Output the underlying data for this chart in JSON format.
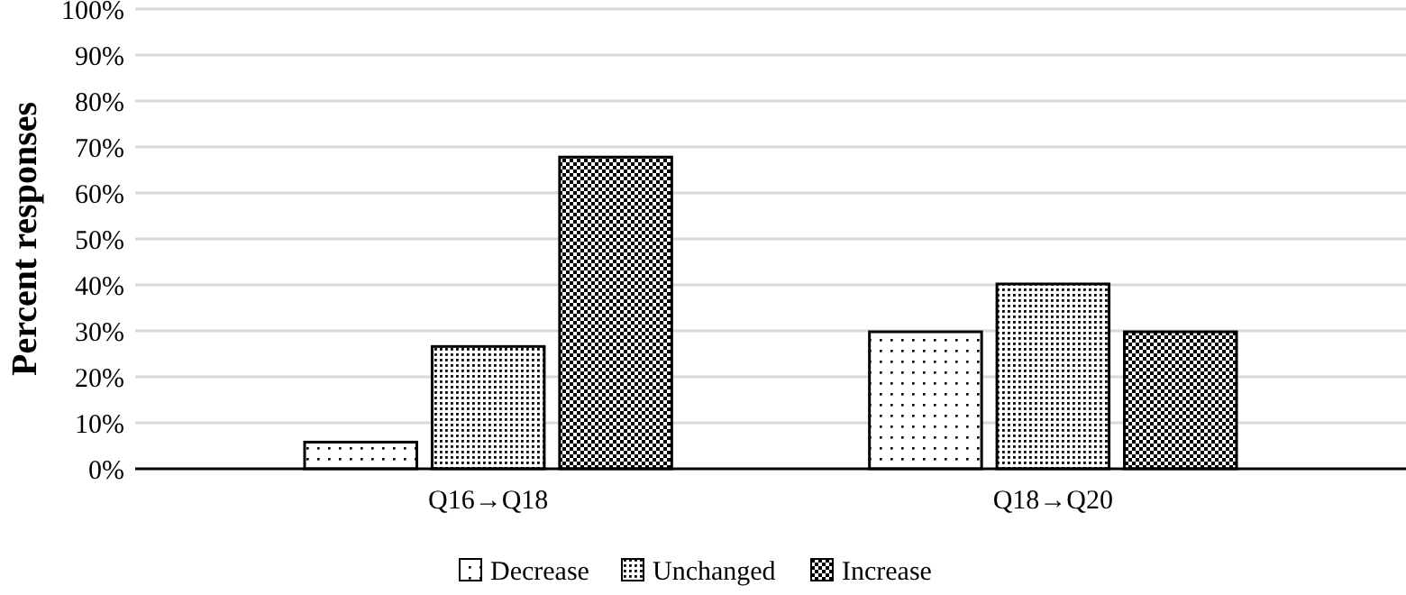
{
  "chart_data": {
    "type": "bar",
    "ylabel": "Percent responses",
    "categories": [
      "Q16→Q18",
      "Q18→Q20"
    ],
    "series": [
      {
        "name": "Decrease",
        "color": "#000000",
        "values": [
          5.8,
          29.8
        ]
      },
      {
        "name": "Unchanged",
        "color": "#000000",
        "values": [
          26.6,
          40.2
        ]
      },
      {
        "name": "Increase",
        "color": "#000000",
        "values": [
          67.8,
          29.8
        ]
      }
    ],
    "ylim": [
      0,
      100
    ],
    "yticks": [
      {
        "value": 0,
        "label": "0%"
      },
      {
        "value": 10,
        "label": "10%"
      },
      {
        "value": 20,
        "label": "20%"
      },
      {
        "value": 30,
        "label": "30%"
      },
      {
        "value": 40,
        "label": "40%"
      },
      {
        "value": 50,
        "label": "50%"
      },
      {
        "value": 60,
        "label": "60%"
      },
      {
        "value": 70,
        "label": "70%"
      },
      {
        "value": 80,
        "label": "80%"
      },
      {
        "value": 90,
        "label": "90%"
      },
      {
        "value": 100,
        "label": "100%"
      }
    ],
    "grid": "y",
    "legend": "bottom"
  }
}
